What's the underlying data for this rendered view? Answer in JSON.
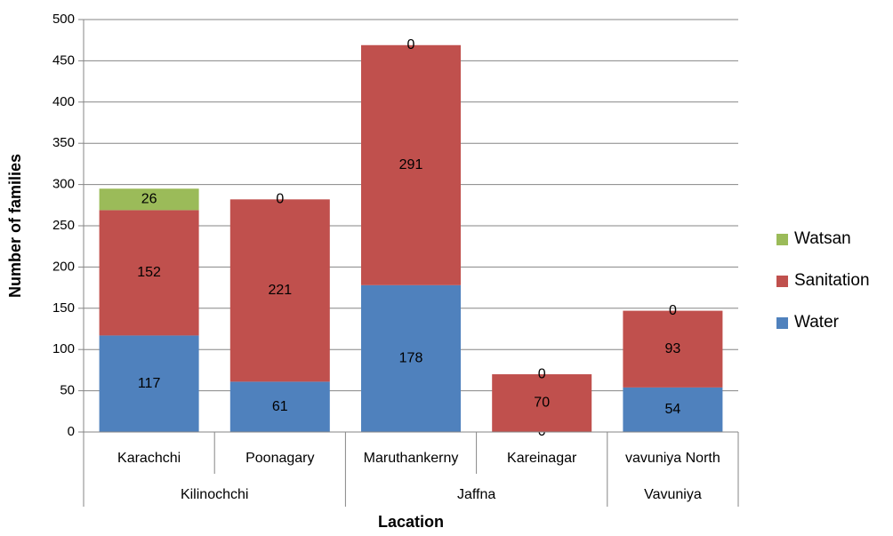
{
  "chart_data": {
    "type": "bar",
    "stacked": true,
    "xlabel": "Lacation",
    "ylabel": "Number of families",
    "ylim": [
      0,
      500
    ],
    "y_ticks": [
      0,
      50,
      100,
      150,
      200,
      250,
      300,
      350,
      400,
      450,
      500
    ],
    "grid": true,
    "legend_position": "right",
    "categories": [
      "Karachchi",
      "Poonagary",
      "Maruthankerny",
      "Kareinagar",
      "vavuniya North"
    ],
    "groups": [
      {
        "name": "Kilinochchi",
        "categories": [
          "Karachchi",
          "Poonagary"
        ]
      },
      {
        "name": "Jaffna",
        "categories": [
          "Maruthankerny",
          "Kareinagar"
        ]
      },
      {
        "name": "Vavuniya",
        "categories": [
          "vavuniya North"
        ]
      }
    ],
    "series": [
      {
        "name": "Water",
        "color": "#4f81bd",
        "values": [
          117,
          61,
          178,
          0,
          54
        ]
      },
      {
        "name": "Sanitation",
        "color": "#c0504d",
        "values": [
          152,
          221,
          291,
          70,
          93
        ]
      },
      {
        "name": "Watsan",
        "color": "#9bbb59",
        "values": [
          26,
          0,
          0,
          0,
          0
        ]
      }
    ],
    "legend_order": [
      "Watsan",
      "Sanitation",
      "Water"
    ]
  }
}
